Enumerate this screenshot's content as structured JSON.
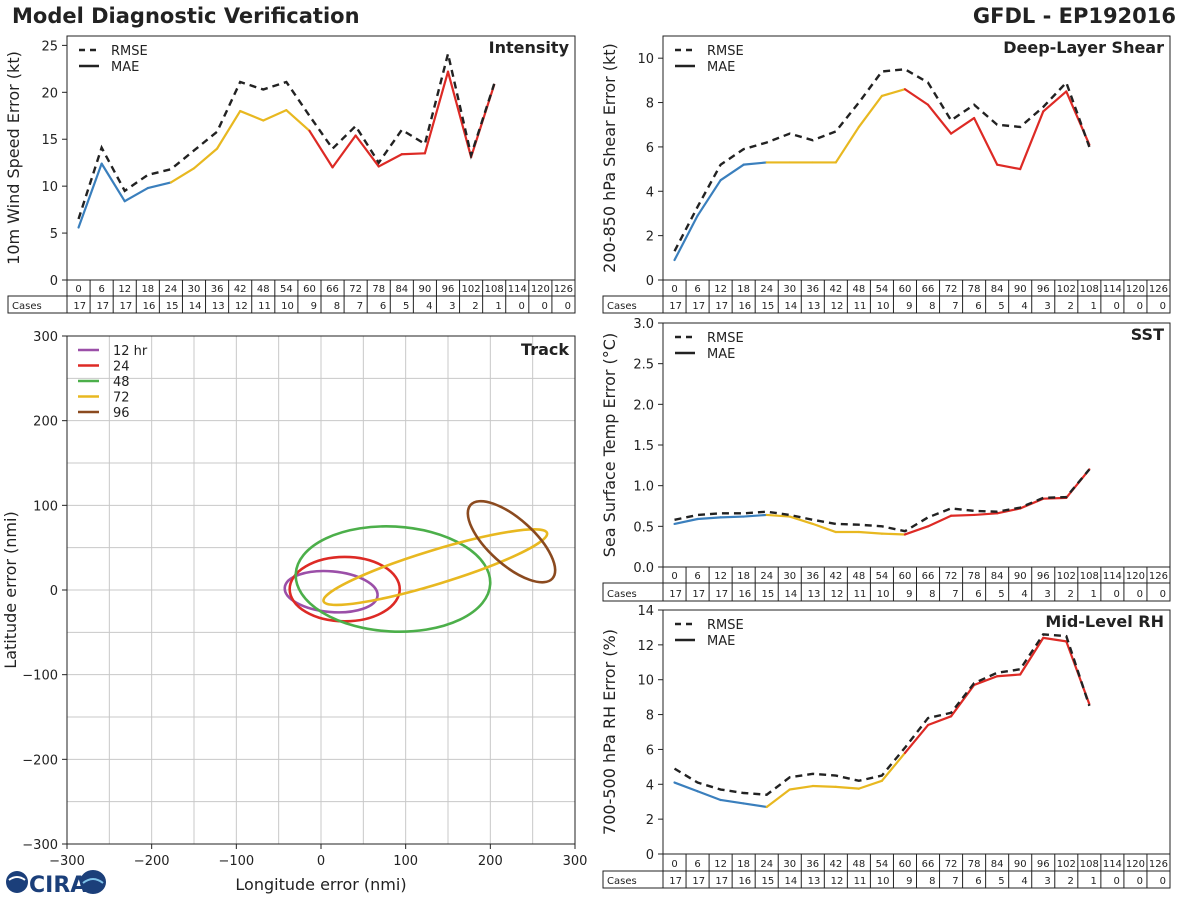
{
  "header": {
    "title": "Model Diagnostic Verification",
    "storm": "GFDL - EP192016"
  },
  "colors": {
    "early": "#3a7fbd",
    "mid": "#e8b820",
    "late": "#dd2a25",
    "rmse": "#222222",
    "track": [
      "#9b4fa8",
      "#dd2a25",
      "#4caf4a",
      "#e8b820",
      "#8b4a1f"
    ]
  },
  "legend": {
    "rmse": "RMSE",
    "mae": "MAE"
  },
  "table": {
    "hours": [
      "0",
      "6",
      "12",
      "18",
      "24",
      "30",
      "36",
      "42",
      "48",
      "54",
      "60",
      "66",
      "72",
      "78",
      "84",
      "90",
      "96",
      "102",
      "108",
      "114",
      "120",
      "126"
    ],
    "cases_label": "Cases",
    "cases": [
      "17",
      "17",
      "17",
      "16",
      "15",
      "14",
      "13",
      "12",
      "11",
      "10",
      "9",
      "8",
      "7",
      "6",
      "5",
      "4",
      "3",
      "2",
      "1",
      "0",
      "0",
      "0"
    ]
  },
  "chart_data": [
    {
      "id": "intensity",
      "type": "line",
      "title": "Intensity",
      "ylabel": "10m Wind Speed Error (kt)",
      "ylim": [
        0,
        26
      ],
      "yticks": [
        0,
        5,
        10,
        15,
        20,
        25
      ],
      "x": [
        0,
        6,
        12,
        18,
        24,
        30,
        36,
        42,
        48,
        54,
        60,
        66,
        72,
        78,
        84,
        90,
        96,
        102,
        108
      ],
      "series": [
        {
          "name": "RMSE",
          "values": [
            6.5,
            14.1,
            9.5,
            11.2,
            11.8,
            13.8,
            15.8,
            21.1,
            20.3,
            21.1,
            17.5,
            14.0,
            16.4,
            12.5,
            16.0,
            14.5,
            24.1,
            13.3,
            20.9
          ]
        },
        {
          "name": "MAE",
          "values": [
            5.6,
            12.4,
            8.4,
            9.8,
            10.4,
            11.9,
            14.0,
            18.0,
            17.0,
            18.1,
            15.9,
            12.0,
            15.4,
            12.1,
            13.4,
            13.5,
            22.2,
            13.1,
            20.8
          ]
        }
      ]
    },
    {
      "id": "shear",
      "type": "line",
      "title": "Deep-Layer Shear",
      "ylabel": "200-850 hPa Shear Error (kt)",
      "ylim": [
        0,
        11
      ],
      "yticks": [
        0,
        2,
        4,
        6,
        8,
        10
      ],
      "x": [
        0,
        6,
        12,
        18,
        24,
        30,
        36,
        42,
        48,
        54,
        60,
        66,
        72,
        78,
        84,
        90,
        96,
        102,
        108
      ],
      "series": [
        {
          "name": "RMSE",
          "values": [
            1.3,
            3.3,
            5.2,
            5.9,
            6.2,
            6.6,
            6.3,
            6.7,
            8.0,
            9.4,
            9.5,
            8.9,
            7.2,
            7.9,
            7.0,
            6.9,
            7.8,
            8.9,
            6.0
          ]
        },
        {
          "name": "MAE",
          "values": [
            0.9,
            2.9,
            4.5,
            5.2,
            5.3,
            5.3,
            5.3,
            5.3,
            6.9,
            8.3,
            8.6,
            7.9,
            6.6,
            7.3,
            5.2,
            5.0,
            7.6,
            8.5,
            6.1
          ]
        }
      ]
    },
    {
      "id": "sst",
      "type": "line",
      "title": "SST",
      "ylabel": "Sea Surface Temp Error (°C)",
      "ylim": [
        0,
        3
      ],
      "yticks": [
        "0.0",
        "0.5",
        "1.0",
        "1.5",
        "2.0",
        "2.5",
        "3.0"
      ],
      "x": [
        0,
        6,
        12,
        18,
        24,
        30,
        36,
        42,
        48,
        54,
        60,
        66,
        72,
        78,
        84,
        90,
        96,
        102,
        108
      ],
      "series": [
        {
          "name": "RMSE",
          "values": [
            0.58,
            0.64,
            0.66,
            0.66,
            0.68,
            0.64,
            0.58,
            0.53,
            0.52,
            0.5,
            0.44,
            0.61,
            0.72,
            0.69,
            0.68,
            0.73,
            0.85,
            0.86,
            1.2
          ]
        },
        {
          "name": "MAE",
          "values": [
            0.53,
            0.59,
            0.61,
            0.62,
            0.64,
            0.62,
            0.53,
            0.43,
            0.43,
            0.41,
            0.4,
            0.5,
            0.63,
            0.64,
            0.66,
            0.72,
            0.84,
            0.85,
            1.2
          ]
        }
      ]
    },
    {
      "id": "rh",
      "type": "line",
      "title": "Mid-Level RH",
      "ylabel": "700-500 hPa RH Error (%)",
      "ylim": [
        0,
        14
      ],
      "yticks": [
        0,
        2,
        4,
        6,
        8,
        10,
        12,
        14
      ],
      "x": [
        0,
        6,
        12,
        18,
        24,
        30,
        36,
        42,
        48,
        54,
        60,
        66,
        72,
        78,
        84,
        90,
        96,
        102,
        108
      ],
      "series": [
        {
          "name": "RMSE",
          "values": [
            4.9,
            4.1,
            3.7,
            3.5,
            3.4,
            4.4,
            4.6,
            4.5,
            4.2,
            4.5,
            6.1,
            7.8,
            8.1,
            9.8,
            10.4,
            10.6,
            12.6,
            12.5,
            8.5
          ]
        },
        {
          "name": "MAE",
          "values": [
            4.1,
            3.6,
            3.1,
            2.9,
            2.7,
            3.7,
            3.9,
            3.85,
            3.75,
            4.2,
            5.8,
            7.4,
            7.9,
            9.7,
            10.2,
            10.3,
            12.4,
            12.2,
            8.6
          ]
        }
      ]
    },
    {
      "id": "track",
      "type": "scatter",
      "title": "Track",
      "xlabel": "Longitude error (nmi)",
      "ylabel": "Latitude error (nmi)",
      "xlim": [
        -300,
        300
      ],
      "ylim": [
        -300,
        300
      ],
      "xticks": [
        "-300",
        "-200",
        "-100",
        "0",
        "100",
        "200",
        "300"
      ],
      "yticks": [
        "-300",
        "-200",
        "-100",
        "0",
        "100",
        "200",
        "300"
      ],
      "grid": true,
      "legend": [
        "12 hr",
        "24",
        "48",
        "72",
        "96"
      ],
      "ellipses": [
        {
          "label": "12 hr",
          "cx": 12,
          "cy": -2,
          "rx": 55,
          "ry": 24,
          "angle": -5
        },
        {
          "label": "24",
          "cx": 28,
          "cy": 1,
          "rx": 65,
          "ry": 38,
          "angle": 0
        },
        {
          "label": "48",
          "cx": 85,
          "cy": 13,
          "rx": 115,
          "ry": 62,
          "angle": -3
        },
        {
          "label": "72",
          "cx": 135,
          "cy": 27,
          "rx": 138,
          "ry": 20,
          "angle": 17
        },
        {
          "label": "96",
          "cx": 225,
          "cy": 57,
          "rx": 65,
          "ry": 27,
          "angle": -42
        }
      ]
    }
  ]
}
